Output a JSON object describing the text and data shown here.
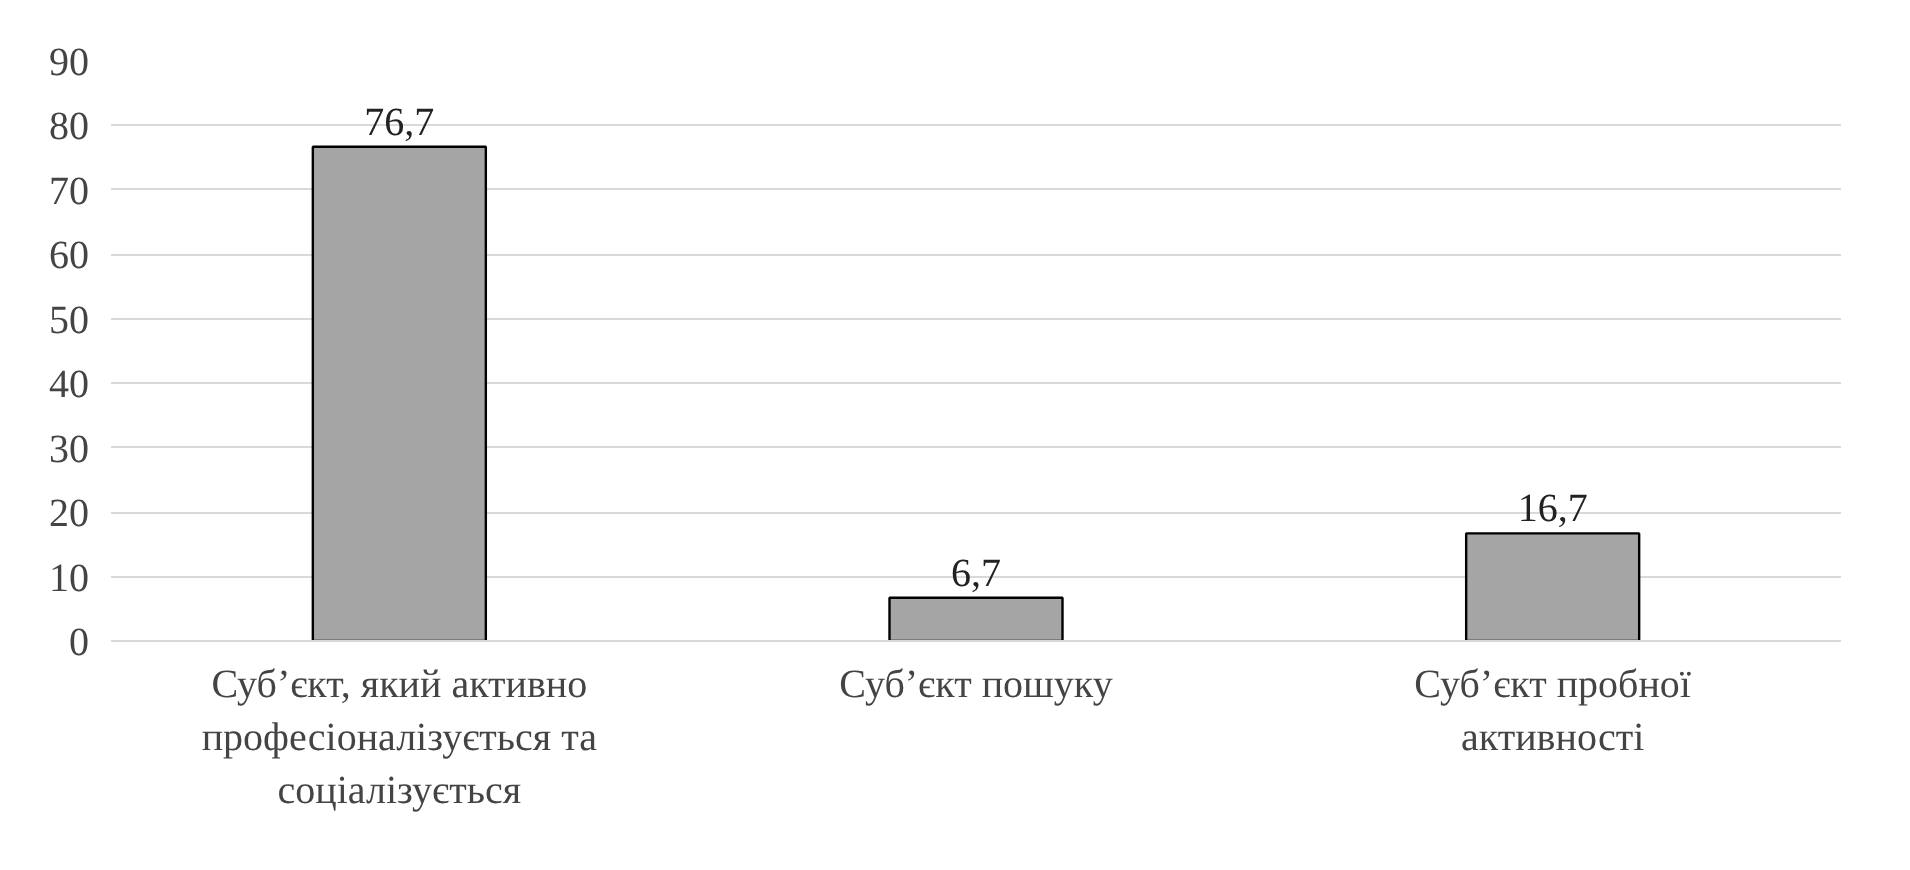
{
  "chart_data": {
    "type": "bar",
    "categories": [
      "Суб’єкт, який активно професіоналізується та соціалізується",
      "Суб’єкт пошуку",
      "Суб’єкт пробної активності"
    ],
    "values": [
      76.7,
      6.7,
      16.7
    ],
    "value_labels": [
      "76,7",
      "6,7",
      "16,7"
    ],
    "color": "#a5a5a5",
    "ylim": [
      0,
      90
    ],
    "yticks": [
      0,
      10,
      20,
      30,
      40,
      50,
      60,
      70,
      80,
      90
    ],
    "grid": "y"
  }
}
